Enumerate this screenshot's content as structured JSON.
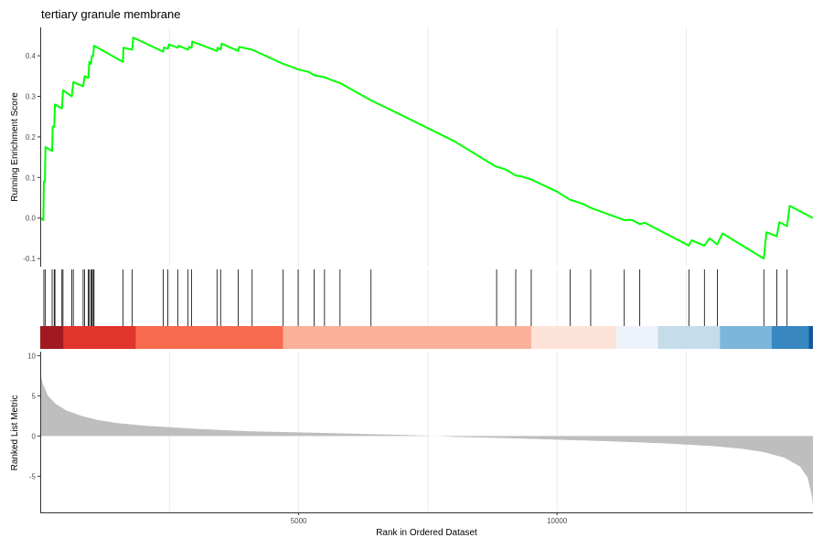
{
  "title": "tertiary granule membrane",
  "chart_data": {
    "type": "line",
    "title": "tertiary granule membrane",
    "xlabel": "Rank in Ordered Dataset",
    "xlim": [
      0,
      14950
    ],
    "x_ticks": [
      5000,
      10000
    ],
    "grid": true,
    "colors": {
      "es_line": "#00ff00",
      "hit_line": "#000000",
      "ranked_fill": "#bebebe",
      "axis": "#333333",
      "grid": "#ebebeb"
    },
    "enrichment": {
      "ylabel": "Running Enrichment Score",
      "ylim": [
        -0.12,
        0.47
      ],
      "y_ticks": [
        -0.1,
        0.0,
        0.1,
        0.2,
        0.3,
        0.4
      ],
      "tick_labels": [
        "-0.1",
        "0.0",
        "0.1",
        "0.2",
        "0.3",
        "0.4"
      ],
      "points": [
        [
          0,
          0
        ],
        [
          60,
          -0.005
        ],
        [
          70,
          0.09
        ],
        [
          90,
          0.09
        ],
        [
          100,
          0.175
        ],
        [
          230,
          0.165
        ],
        [
          240,
          0.225
        ],
        [
          270,
          0.225
        ],
        [
          285,
          0.28
        ],
        [
          420,
          0.27
        ],
        [
          440,
          0.315
        ],
        [
          610,
          0.3
        ],
        [
          640,
          0.335
        ],
        [
          830,
          0.325
        ],
        [
          860,
          0.35
        ],
        [
          930,
          0.345
        ],
        [
          950,
          0.385
        ],
        [
          980,
          0.38
        ],
        [
          1000,
          0.4
        ],
        [
          1025,
          0.4
        ],
        [
          1040,
          0.425
        ],
        [
          1600,
          0.385
        ],
        [
          1610,
          0.42
        ],
        [
          1780,
          0.415
        ],
        [
          1800,
          0.445
        ],
        [
          2380,
          0.41
        ],
        [
          2390,
          0.42
        ],
        [
          2470,
          0.418
        ],
        [
          2490,
          0.428
        ],
        [
          2660,
          0.42
        ],
        [
          2680,
          0.425
        ],
        [
          2860,
          0.415
        ],
        [
          2880,
          0.422
        ],
        [
          2930,
          0.42
        ],
        [
          2940,
          0.435
        ],
        [
          3420,
          0.412
        ],
        [
          3430,
          0.42
        ],
        [
          3490,
          0.415
        ],
        [
          3510,
          0.43
        ],
        [
          3830,
          0.412
        ],
        [
          3850,
          0.422
        ],
        [
          4100,
          0.415
        ],
        [
          4700,
          0.38
        ],
        [
          4710,
          0.38
        ],
        [
          5000,
          0.366
        ],
        [
          5200,
          0.36
        ],
        [
          5300,
          0.352
        ],
        [
          5500,
          0.347
        ],
        [
          5700,
          0.337
        ],
        [
          5800,
          0.333
        ],
        [
          6400,
          0.29
        ],
        [
          7000,
          0.253
        ],
        [
          8000,
          0.19
        ],
        [
          8800,
          0.128
        ],
        [
          9000,
          0.12
        ],
        [
          9200,
          0.105
        ],
        [
          9300,
          0.103
        ],
        [
          9500,
          0.095
        ],
        [
          10000,
          0.065
        ],
        [
          10250,
          0.045
        ],
        [
          10500,
          0.035
        ],
        [
          10650,
          0.025
        ],
        [
          11300,
          -0.005
        ],
        [
          11450,
          -0.005
        ],
        [
          11600,
          -0.015
        ],
        [
          11700,
          -0.012
        ],
        [
          12550,
          -0.068
        ],
        [
          12600,
          -0.055
        ],
        [
          12850,
          -0.068
        ],
        [
          12950,
          -0.05
        ],
        [
          13100,
          -0.065
        ],
        [
          13200,
          -0.038
        ],
        [
          14000,
          -0.1
        ],
        [
          14050,
          -0.035
        ],
        [
          14250,
          -0.045
        ],
        [
          14300,
          -0.01
        ],
        [
          14450,
          -0.02
        ],
        [
          14500,
          0.03
        ],
        [
          14950,
          0.0
        ]
      ]
    },
    "hits": [
      70,
      100,
      230,
      270,
      285,
      420,
      440,
      610,
      640,
      830,
      860,
      930,
      950,
      980,
      1000,
      1025,
      1040,
      1600,
      1780,
      2380,
      2470,
      2660,
      2860,
      2930,
      3420,
      3490,
      3830,
      4100,
      4700,
      4990,
      5300,
      5500,
      5800,
      6400,
      8830,
      9200,
      9500,
      10250,
      10650,
      11300,
      11600,
      12550,
      12850,
      13100,
      14000,
      14250,
      14450
    ],
    "color_band": [
      {
        "from": 0,
        "to": 450,
        "color": "#a11a21"
      },
      {
        "from": 450,
        "to": 1850,
        "color": "#e0342d"
      },
      {
        "from": 1850,
        "to": 4700,
        "color": "#f86a4d"
      },
      {
        "from": 4700,
        "to": 9500,
        "color": "#fbb098"
      },
      {
        "from": 9500,
        "to": 11150,
        "color": "#fde2d8"
      },
      {
        "from": 11150,
        "to": 11950,
        "color": "#eef3fb"
      },
      {
        "from": 11950,
        "to": 13150,
        "color": "#c5dcea"
      },
      {
        "from": 13150,
        "to": 14150,
        "color": "#7cb6da"
      },
      {
        "from": 14150,
        "to": 14870,
        "color": "#3887c1"
      },
      {
        "from": 14870,
        "to": 14950,
        "color": "#15569e"
      }
    ],
    "ranked": {
      "ylabel": "Ranked List Metric",
      "ylim": [
        -9.5,
        10.5
      ],
      "y_ticks": [
        -5,
        0,
        5,
        10
      ],
      "tick_labels": [
        "-5",
        "0",
        "5",
        "10"
      ],
      "points": [
        [
          0,
          7.8
        ],
        [
          50,
          6.5
        ],
        [
          150,
          5
        ],
        [
          300,
          4
        ],
        [
          500,
          3.2
        ],
        [
          800,
          2.5
        ],
        [
          1100,
          2.0
        ],
        [
          1500,
          1.6
        ],
        [
          2000,
          1.3
        ],
        [
          3000,
          0.9
        ],
        [
          4000,
          0.6
        ],
        [
          5000,
          0.45
        ],
        [
          6000,
          0.3
        ],
        [
          7000,
          0.15
        ],
        [
          7500,
          0.05
        ],
        [
          8000,
          -0.1
        ],
        [
          9000,
          -0.25
        ],
        [
          10000,
          -0.45
        ],
        [
          11000,
          -0.65
        ],
        [
          12000,
          -0.9
        ],
        [
          13000,
          -1.25
        ],
        [
          13600,
          -1.6
        ],
        [
          14000,
          -2.0
        ],
        [
          14400,
          -2.7
        ],
        [
          14700,
          -3.8
        ],
        [
          14850,
          -5.2
        ],
        [
          14930,
          -7.5
        ],
        [
          14950,
          -8.8
        ]
      ]
    }
  }
}
